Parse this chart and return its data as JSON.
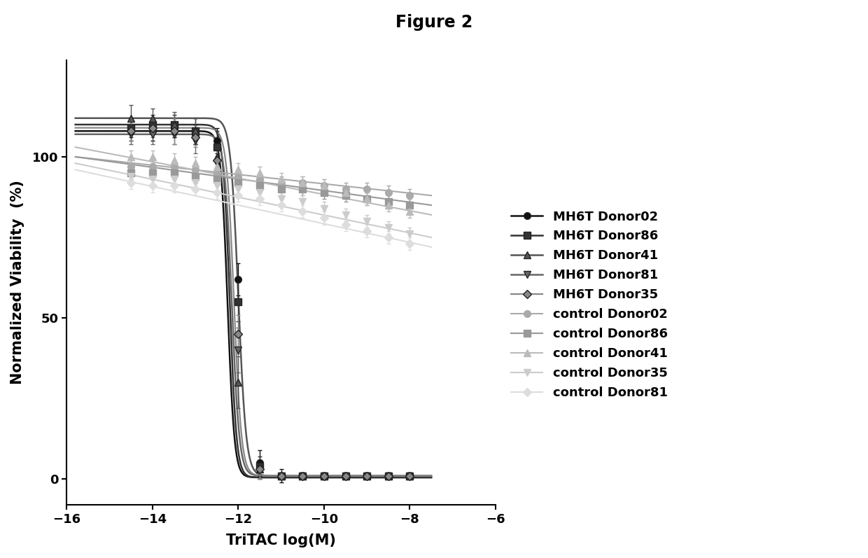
{
  "title": "Figure 2",
  "xlabel": "TriTAC log(M)",
  "ylabel": "Normalized Viability  (%)",
  "xlim": [
    -16,
    -6
  ],
  "ylim": [
    -8,
    130
  ],
  "xticks": [
    -16,
    -14,
    -12,
    -10,
    -8,
    -6
  ],
  "yticks": [
    0,
    50,
    100
  ],
  "background_color": "#ffffff",
  "series": [
    {
      "label": "MH6T Donor02",
      "color": "#111111",
      "marker": "o",
      "markersize": 7,
      "linewidth": 1.8,
      "linestyle": "-",
      "top": 108,
      "bottom": 0.5,
      "ec50": -12.25,
      "hill": 5.5,
      "control": false,
      "y_pts": [
        108,
        108,
        109,
        107,
        105,
        62,
        5,
        1,
        1,
        1,
        1,
        1,
        1,
        1
      ],
      "yerr": [
        3,
        3,
        3,
        3,
        4,
        5,
        4,
        2,
        1,
        1,
        1,
        1,
        1,
        1
      ]
    },
    {
      "label": "MH6T Donor86",
      "color": "#333333",
      "marker": "s",
      "markersize": 7,
      "linewidth": 1.8,
      "linestyle": "-",
      "top": 110,
      "bottom": 0.5,
      "ec50": -12.2,
      "hill": 5.5,
      "control": false,
      "y_pts": [
        109,
        110,
        110,
        108,
        103,
        55,
        4,
        1,
        1,
        1,
        1,
        1,
        1,
        1
      ],
      "yerr": [
        3,
        3,
        3,
        4,
        5,
        6,
        3,
        1,
        1,
        1,
        1,
        1,
        1,
        1
      ]
    },
    {
      "label": "MH6T Donor41",
      "color": "#555555",
      "marker": "^",
      "markersize": 7,
      "linewidth": 1.8,
      "linestyle": "-",
      "top": 112,
      "bottom": 1.0,
      "ec50": -12.0,
      "hill": 4.8,
      "control": false,
      "y_pts": [
        112,
        112,
        110,
        108,
        100,
        30,
        3,
        1,
        1,
        1,
        1,
        1,
        1,
        1
      ],
      "yerr": [
        4,
        3,
        4,
        4,
        6,
        8,
        3,
        1,
        1,
        1,
        1,
        1,
        1,
        1
      ]
    },
    {
      "label": "MH6T Donor81",
      "color": "#666666",
      "marker": "v",
      "markersize": 7,
      "linewidth": 1.8,
      "linestyle": "-",
      "top": 107,
      "bottom": 1.0,
      "ec50": -12.15,
      "hill": 5.0,
      "control": false,
      "y_pts": [
        107,
        107,
        107,
        105,
        98,
        40,
        3,
        1,
        1,
        1,
        1,
        1,
        1,
        1
      ],
      "yerr": [
        3,
        3,
        3,
        4,
        5,
        7,
        3,
        1,
        1,
        1,
        1,
        1,
        1,
        1
      ]
    },
    {
      "label": "MH6T Donor35",
      "color": "#888888",
      "marker": "D",
      "markersize": 6,
      "linewidth": 1.6,
      "linestyle": "-",
      "top": 109,
      "bottom": 1.0,
      "ec50": -12.1,
      "hill": 5.0,
      "control": false,
      "y_pts": [
        108,
        109,
        108,
        106,
        99,
        45,
        3,
        1,
        1,
        1,
        1,
        1,
        1,
        1
      ],
      "yerr": [
        3,
        3,
        4,
        3,
        5,
        6,
        3,
        1,
        1,
        1,
        1,
        1,
        1,
        1
      ]
    },
    {
      "label": "control Donor02",
      "color": "#aaaaaa",
      "marker": "o",
      "markersize": 7,
      "linewidth": 1.5,
      "linestyle": "-",
      "top": 100,
      "bottom": 88,
      "ec50": -8.0,
      "hill": 1.0,
      "control": true,
      "y_pts": [
        97,
        97,
        97,
        96,
        95,
        94,
        93,
        92,
        92,
        91,
        90,
        90,
        89,
        88
      ],
      "yerr": [
        2,
        2,
        2,
        2,
        2,
        2,
        2,
        2,
        2,
        2,
        2,
        2,
        2,
        2
      ]
    },
    {
      "label": "control Donor86",
      "color": "#999999",
      "marker": "s",
      "markersize": 7,
      "linewidth": 1.5,
      "linestyle": "-",
      "top": 100,
      "bottom": 85,
      "ec50": -8.0,
      "hill": 1.0,
      "control": true,
      "y_pts": [
        95,
        95,
        95,
        94,
        93,
        92,
        91,
        90,
        90,
        89,
        88,
        87,
        86,
        85
      ],
      "yerr": [
        2,
        2,
        2,
        2,
        2,
        2,
        2,
        2,
        2,
        2,
        2,
        2,
        2,
        2
      ]
    },
    {
      "label": "control Donor41",
      "color": "#bbbbbb",
      "marker": "^",
      "markersize": 7,
      "linewidth": 1.5,
      "linestyle": "-",
      "top": 103,
      "bottom": 82,
      "ec50": -8.0,
      "hill": 1.0,
      "control": true,
      "y_pts": [
        100,
        100,
        99,
        98,
        97,
        96,
        95,
        93,
        92,
        91,
        89,
        87,
        85,
        83
      ],
      "yerr": [
        2,
        2,
        2,
        2,
        2,
        2,
        2,
        2,
        2,
        2,
        2,
        2,
        2,
        2
      ]
    },
    {
      "label": "control Donor35",
      "color": "#cccccc",
      "marker": "v",
      "markersize": 7,
      "linewidth": 1.5,
      "linestyle": "-",
      "top": 98,
      "bottom": 75,
      "ec50": -8.0,
      "hill": 1.0,
      "control": true,
      "y_pts": [
        94,
        93,
        93,
        92,
        91,
        90,
        89,
        87,
        86,
        84,
        82,
        80,
        78,
        76
      ],
      "yerr": [
        2,
        2,
        2,
        2,
        2,
        2,
        2,
        2,
        2,
        2,
        2,
        2,
        2,
        2
      ]
    },
    {
      "label": "control Donor81",
      "color": "#dddddd",
      "marker": "D",
      "markersize": 6,
      "linewidth": 1.5,
      "linestyle": "-",
      "top": 96,
      "bottom": 72,
      "ec50": -8.0,
      "hill": 1.0,
      "control": true,
      "y_pts": [
        92,
        91,
        91,
        90,
        89,
        88,
        87,
        85,
        83,
        81,
        79,
        77,
        75,
        73
      ],
      "yerr": [
        2,
        2,
        2,
        2,
        2,
        2,
        2,
        2,
        2,
        2,
        2,
        2,
        2,
        2
      ]
    }
  ],
  "x_pts": [
    -14.5,
    -14.0,
    -13.5,
    -13.0,
    -12.5,
    -12.0,
    -11.5,
    -11.0,
    -10.5,
    -10.0,
    -9.5,
    -9.0,
    -8.5,
    -8.0
  ]
}
